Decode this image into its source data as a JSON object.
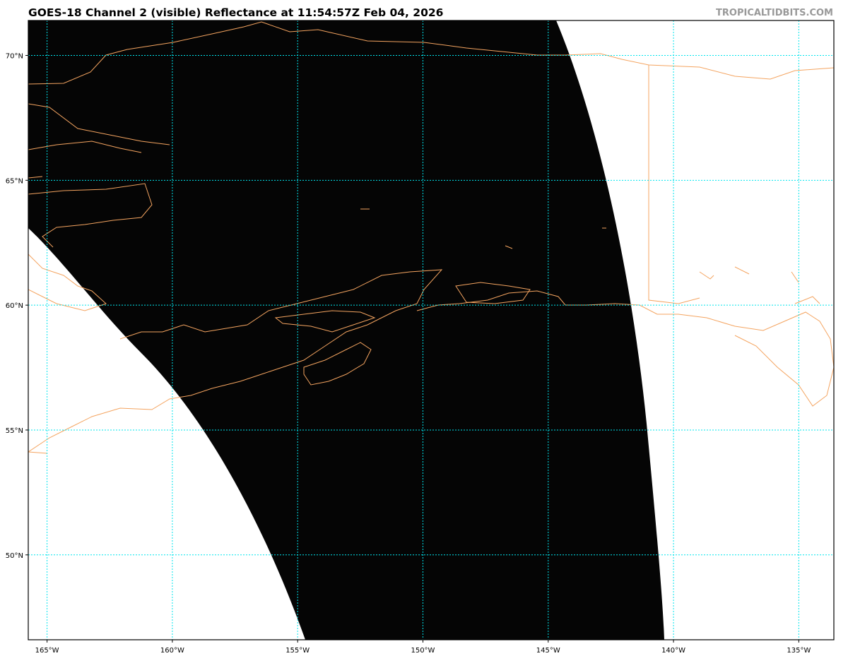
{
  "header": {
    "title": "GOES-18 Channel 2 (visible) Reflectance at 11:54:57Z Feb 04, 2026",
    "credit": "TROPICALTIDBITS.COM"
  },
  "map": {
    "lon_range": [
      -165.75,
      -133.6
    ],
    "lat_range": [
      46.6,
      71.4
    ],
    "lon_ticks": [
      {
        "value": -165,
        "label": "165°W"
      },
      {
        "value": -160,
        "label": "160°W"
      },
      {
        "value": -155,
        "label": "155°W"
      },
      {
        "value": -150,
        "label": "150°W"
      },
      {
        "value": -145,
        "label": "145°W"
      },
      {
        "value": -140,
        "label": "140°W"
      },
      {
        "value": -135,
        "label": "135°W"
      }
    ],
    "lat_ticks": [
      {
        "value": 70,
        "label": "70°N"
      },
      {
        "value": 65,
        "label": "65°N"
      },
      {
        "value": 60,
        "label": "60°N"
      },
      {
        "value": 55,
        "label": "55°N"
      },
      {
        "value": 50,
        "label": "50°N"
      }
    ],
    "colors": {
      "gridline": "#00e5ee",
      "coastline": "#f4a460",
      "imagery": "#050505",
      "background": "#ffffff"
    }
  }
}
